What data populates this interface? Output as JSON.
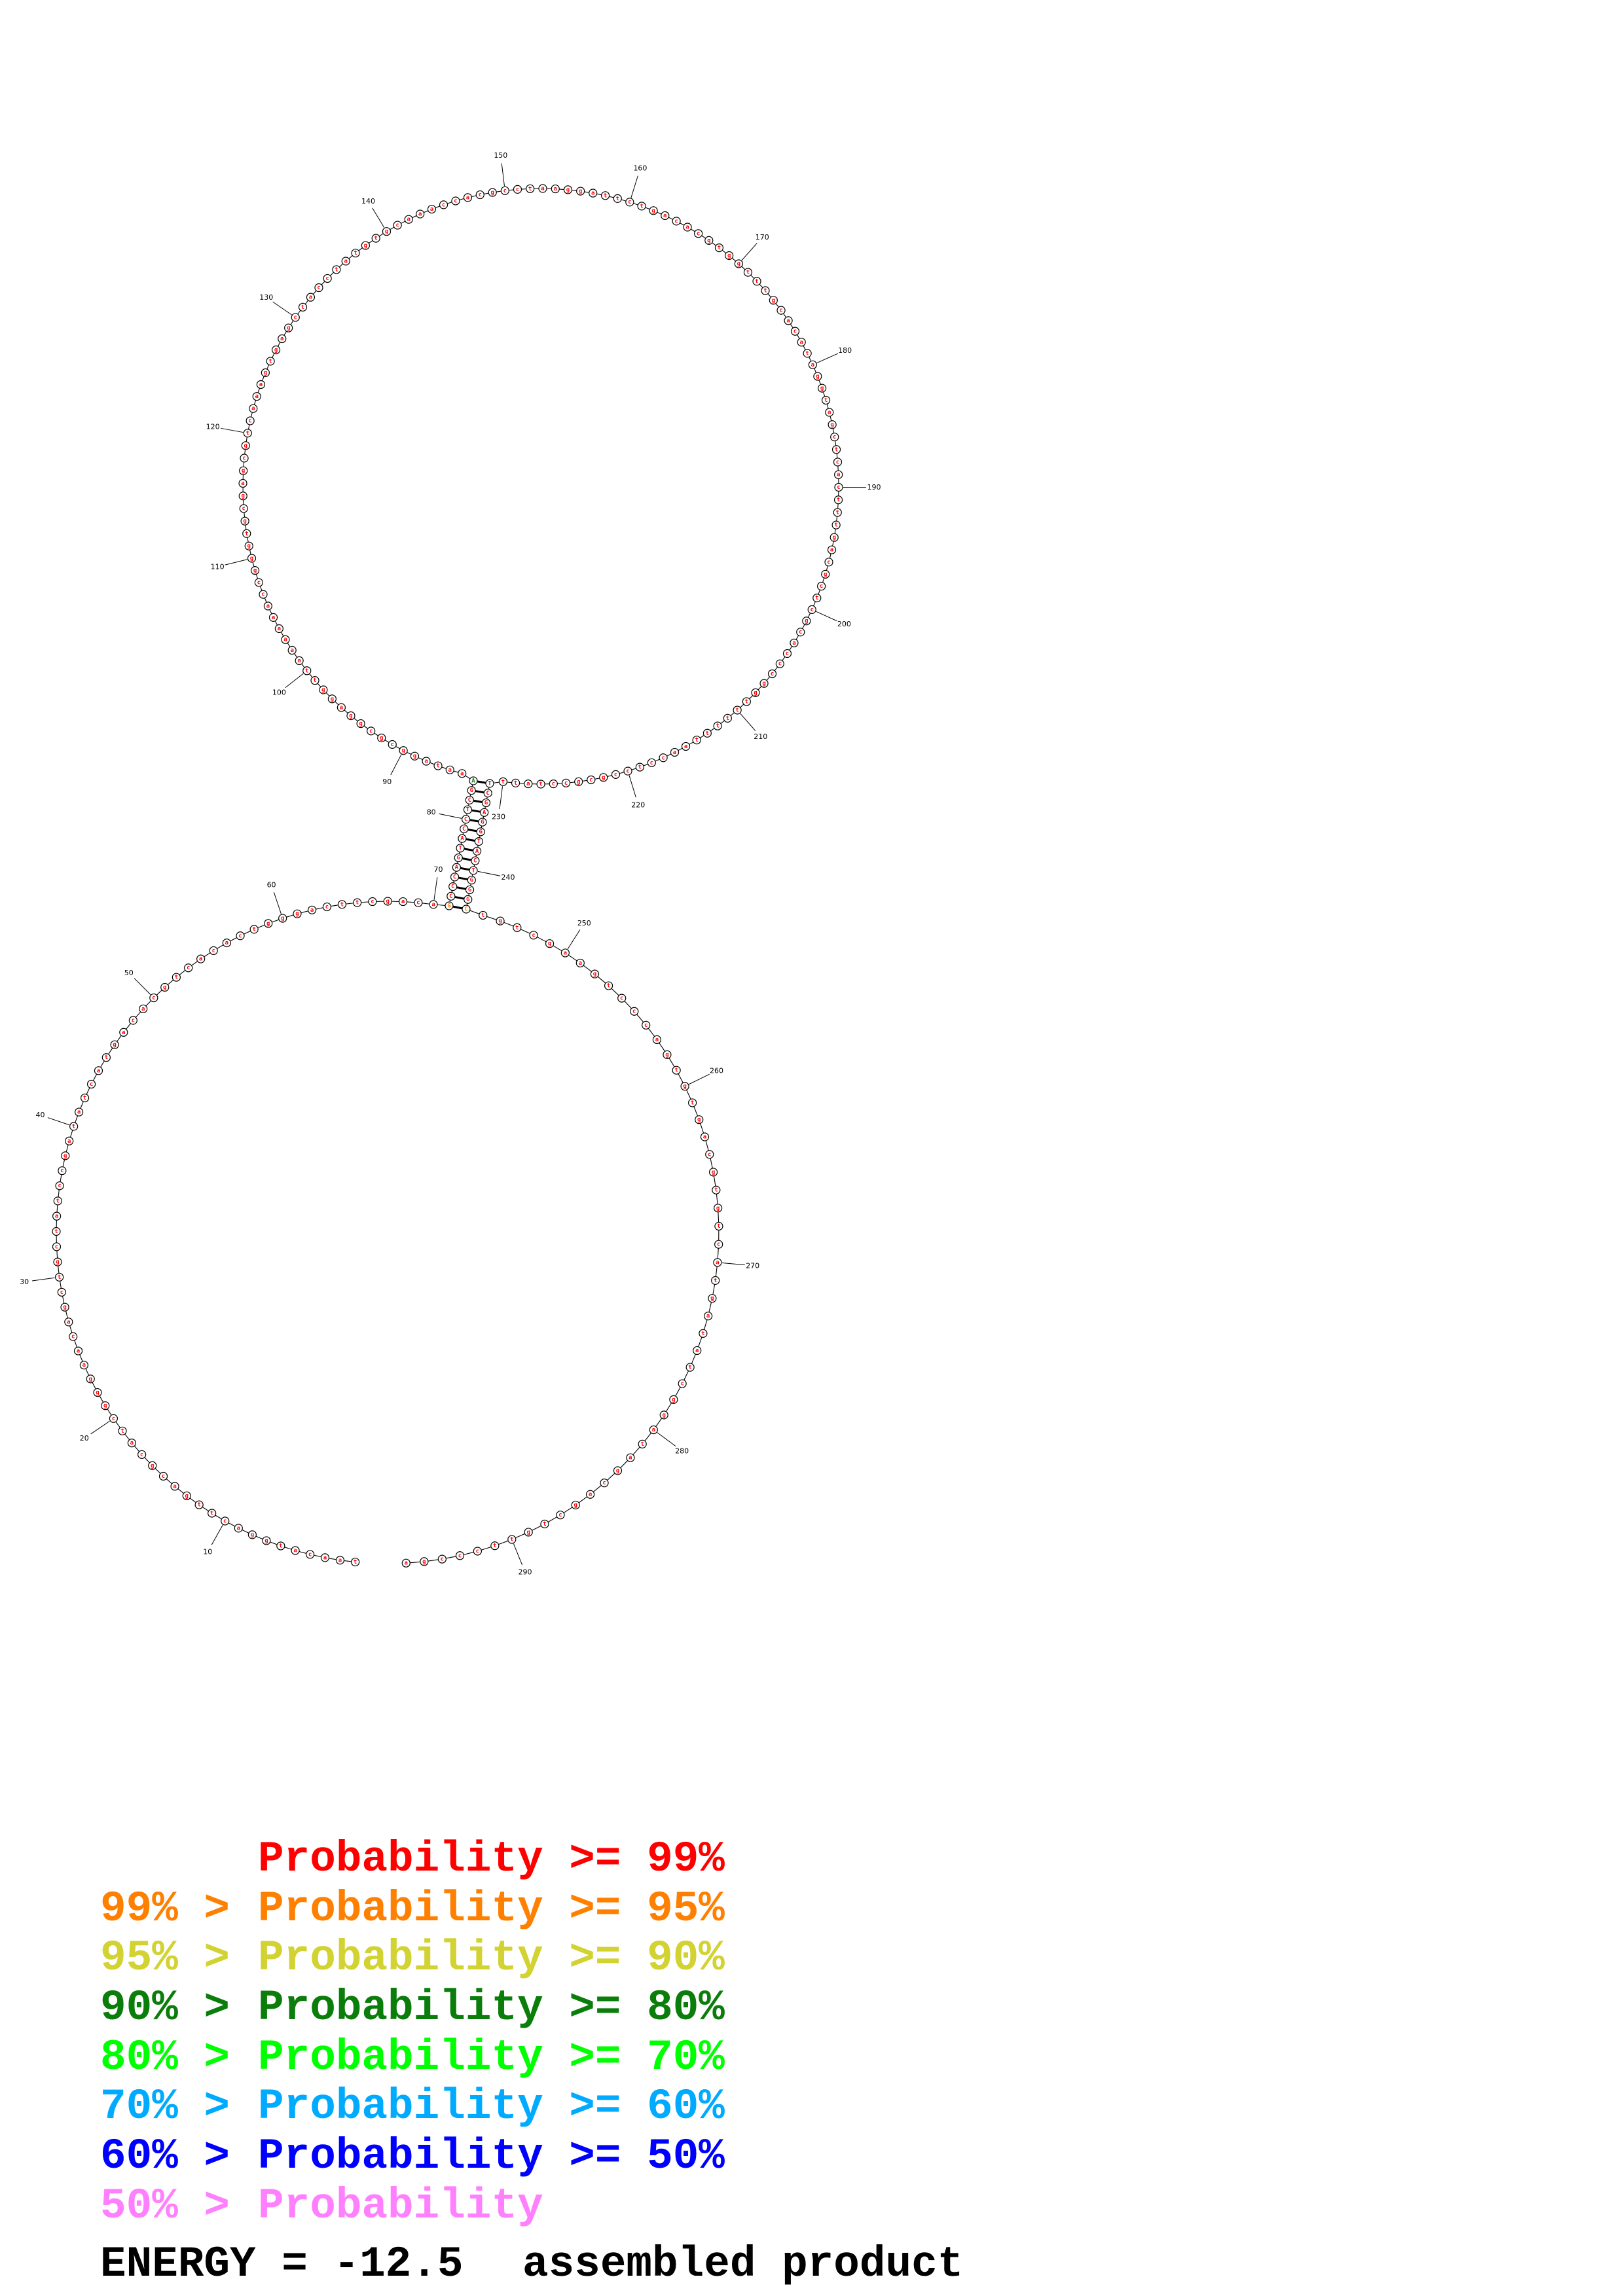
{
  "structure": {
    "sequence": "taacatggacttgacgcatcgggaacagctgctatccgatatcatgacacgtcacactgggacttcgacaGCCCAGTACCTCGAaataggcgcggaggttaaaaaaccgggtgcgagcgtcaaagtgagctacctatgtgcaaaccacgcctaaggattctgacacgtggtttgcacataggtagctcactttgacgctcgcacccggttttttaacctccgcgcctattTCGAGGTACTGGGCtgtcgaagtcccagtgtgacgtgtcatgatatcggatagcagctgttcccga",
    "helix": {
      "start5": 71,
      "end5": 84,
      "start3": 244,
      "end3": 231
    },
    "position_labels": [
      10,
      20,
      30,
      40,
      50,
      60,
      70,
      80,
      90,
      100,
      110,
      120,
      130,
      140,
      150,
      160,
      170,
      180,
      190,
      200,
      210,
      220,
      230,
      240,
      250,
      260,
      270,
      280,
      290
    ],
    "default_probability_level": 0,
    "probability_level_exceptions": {
      "71": 1,
      "244": 1,
      "84": 3,
      "231": 3
    }
  },
  "legend": {
    "rows": [
      {
        "prefix": "",
        "label": "Probability >= 99%",
        "color": "#ff0000"
      },
      {
        "prefix": "99% >",
        "label": "Probability >= 95%",
        "color": "#ff8000"
      },
      {
        "prefix": "95% >",
        "label": "Probability >= 90%",
        "color": "#d2d232"
      },
      {
        "prefix": "90% >",
        "label": "Probability >= 80%",
        "color": "#0a7d0a"
      },
      {
        "prefix": "80% >",
        "label": "Probability >= 70%",
        "color": "#00ff00"
      },
      {
        "prefix": "70% >",
        "label": "Probability >= 60%",
        "color": "#00aaff"
      },
      {
        "prefix": "60% >",
        "label": "Probability >= 50%",
        "color": "#0000ff"
      },
      {
        "prefix": "50% >",
        "label": "Probability",
        "color": "#ff80ff"
      }
    ],
    "energy_label": "ENERGY = -12.5",
    "product_label": "assembled product"
  }
}
